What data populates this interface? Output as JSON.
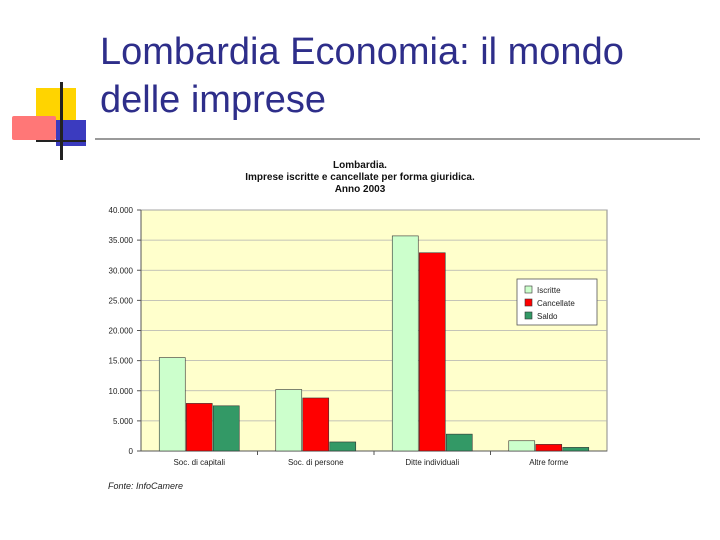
{
  "slide": {
    "title": "Lombardia Economia: il mondo delle imprese"
  },
  "chart_data": {
    "type": "bar",
    "title": [
      "Lombardia.",
      "Imprese iscritte e cancellate per forma giuridica.",
      "Anno 2003"
    ],
    "categories": [
      "Soc. di capitali",
      "Soc. di persone",
      "Ditte individuali",
      "Altre forme"
    ],
    "series": [
      {
        "name": "Iscritte",
        "color": "#ccffcc",
        "values": [
          15500,
          10200,
          35700,
          1700
        ]
      },
      {
        "name": "Cancellate",
        "color": "#ff0000",
        "values": [
          7900,
          8800,
          32900,
          1100
        ]
      },
      {
        "name": "Saldo",
        "color": "#339966",
        "values": [
          7500,
          1500,
          2800,
          600
        ]
      }
    ],
    "ylim": [
      0,
      40000
    ],
    "yticks": [
      "0",
      "5.000",
      "10.000",
      "15.000",
      "20.000",
      "25.000",
      "30.000",
      "35.000",
      "40.000"
    ],
    "grid": true,
    "plot_background": "#ffffcc",
    "legend_position": "right",
    "source": "Fonte: InfoCamere"
  }
}
